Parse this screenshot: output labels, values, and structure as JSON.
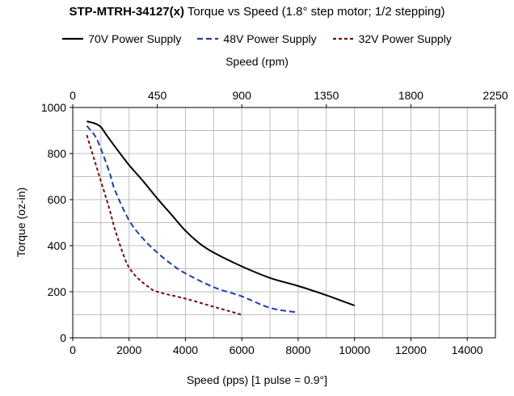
{
  "title_bold": "STP-MTRH-34127(x)",
  "title_rest": " Torque vs Speed (1.8° step motor; 1/2 stepping)",
  "chart_data": {
    "type": "line",
    "xlabel": "Speed (pps)  [1 pulse = 0.9°]",
    "x2label": "Speed (rpm)",
    "ylabel": "Torque (oz-in)",
    "xlim": [
      0,
      15000
    ],
    "ylim": [
      0,
      1000
    ],
    "x2lim": [
      0,
      2250
    ],
    "x_ticks": [
      "0",
      "2000",
      "4000",
      "6000",
      "8000",
      "10000",
      "12000",
      "14000"
    ],
    "y_ticks": [
      "0",
      "200",
      "400",
      "600",
      "800",
      "1000"
    ],
    "x2_ticks": [
      "0",
      "450",
      "900",
      "1350",
      "1800",
      "2250"
    ],
    "grid": true,
    "legend_position": "top",
    "series": [
      {
        "name": "70V Power Supply",
        "color": "#000000",
        "dash": "solid",
        "x": [
          500,
          800,
          1000,
          1200,
          1500,
          2000,
          2500,
          3000,
          3500,
          4000,
          4500,
          5000,
          6000,
          7000,
          8000,
          9000,
          10000
        ],
        "y": [
          940,
          930,
          915,
          880,
          830,
          750,
          680,
          605,
          535,
          465,
          410,
          370,
          310,
          260,
          225,
          185,
          140
        ]
      },
      {
        "name": "48V Power Supply",
        "color": "#1f3fa8",
        "dash": "dashed",
        "x": [
          500,
          800,
          1000,
          1300,
          1500,
          2000,
          2500,
          3000,
          3500,
          4000,
          5000,
          6000,
          7000,
          8000
        ],
        "y": [
          920,
          875,
          820,
          720,
          640,
          510,
          430,
          370,
          320,
          280,
          220,
          180,
          130,
          110
        ]
      },
      {
        "name": "32V Power Supply",
        "color": "#7a0a0a",
        "dash": "dashed",
        "x": [
          500,
          800,
          1000,
          1300,
          1500,
          1800,
          2000,
          2300,
          2700,
          3000,
          4000,
          5000,
          6000
        ],
        "y": [
          880,
          760,
          680,
          560,
          470,
          360,
          305,
          260,
          220,
          200,
          170,
          135,
          100
        ]
      }
    ]
  }
}
